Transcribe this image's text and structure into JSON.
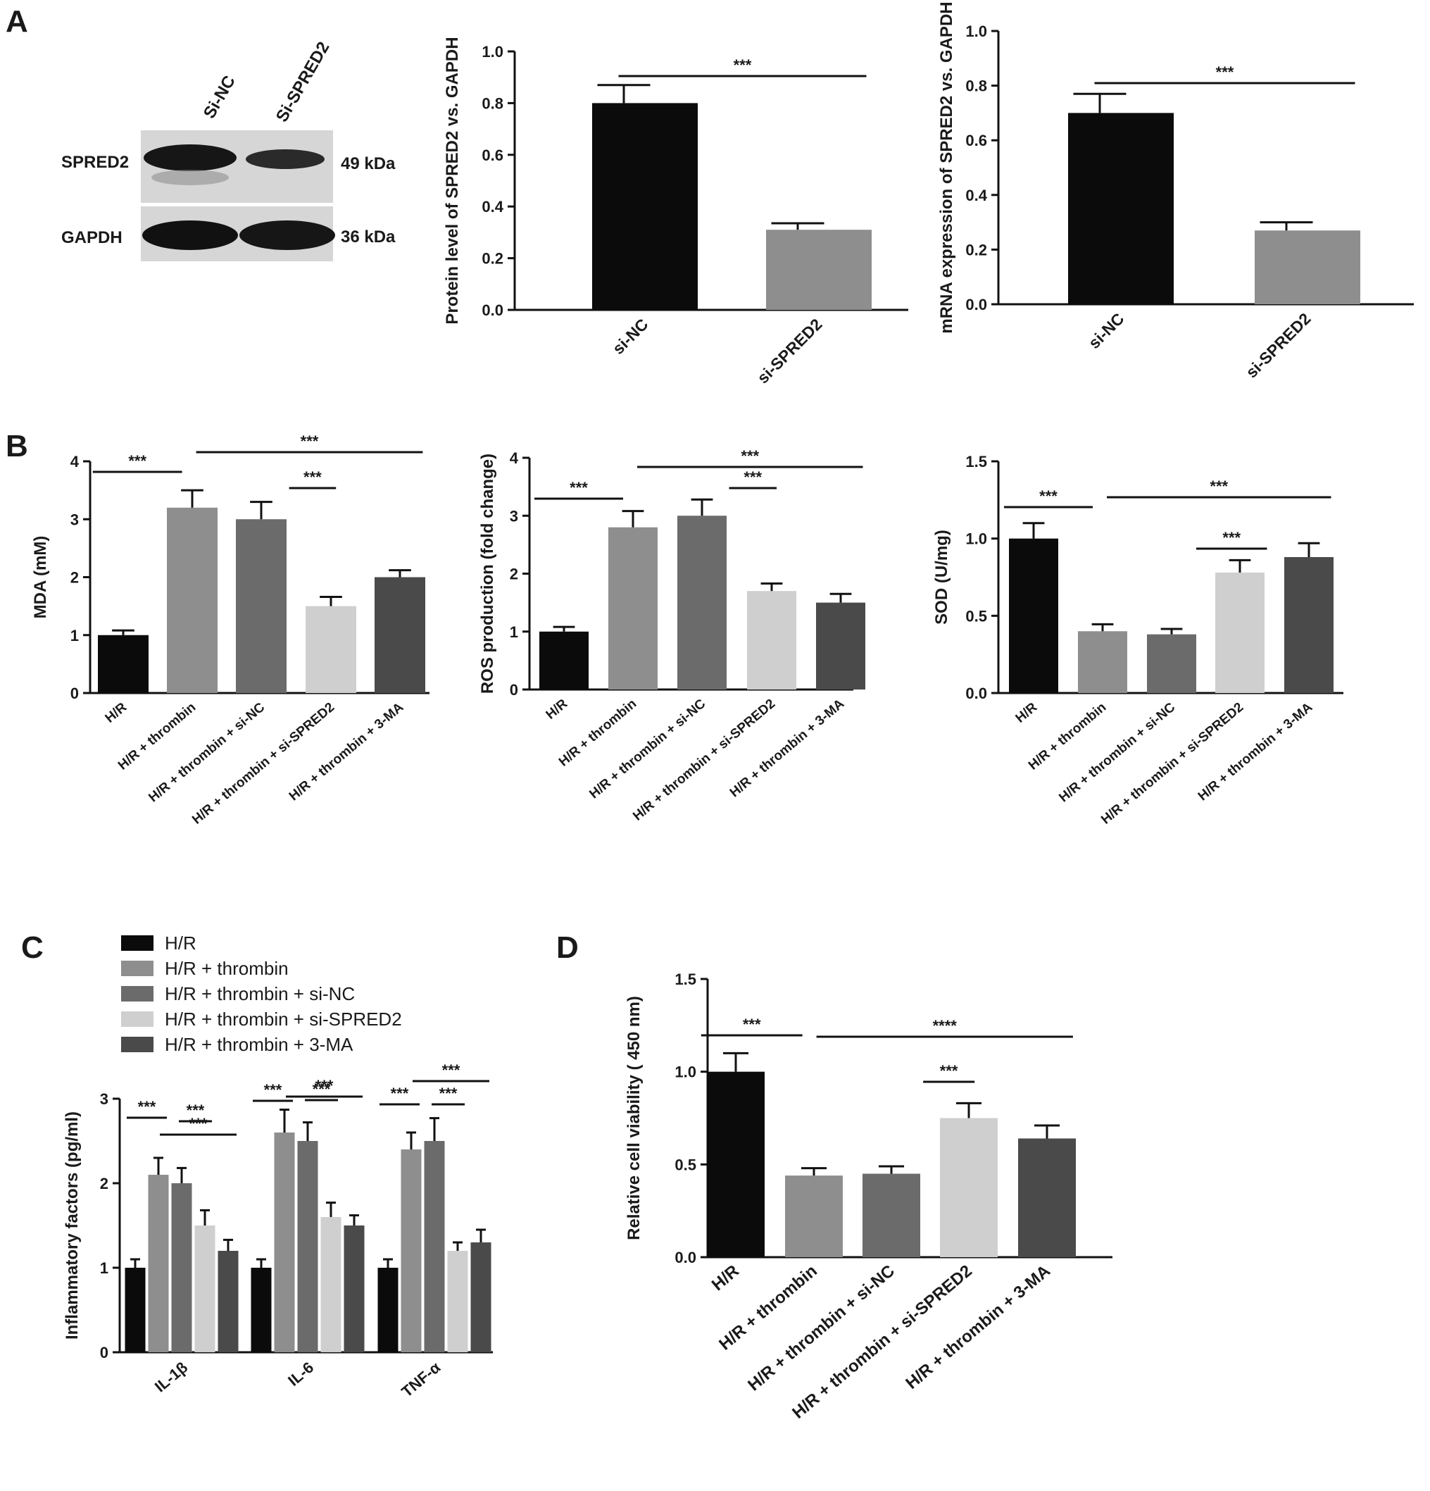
{
  "panels": {
    "A": {
      "letter": "A"
    },
    "B": {
      "letter": "B"
    },
    "C": {
      "letter": "C"
    },
    "D": {
      "letter": "D"
    }
  },
  "western_blot": {
    "lanes": [
      "Si-NC",
      "Si-SPRED2"
    ],
    "rows": [
      {
        "protein": "SPRED2",
        "size": "49 kDa"
      },
      {
        "protein": "GAPDH",
        "size": "36 kDa"
      }
    ]
  },
  "colors": {
    "black": "#0b0b0b",
    "gray_mid": "#8e8e8e",
    "gray_dark": "#6b6b6b",
    "gray_light": "#cfcfcf",
    "gray_darker": "#4a4a4a"
  },
  "chart_data": [
    {
      "id": "A2",
      "type": "bar",
      "categories": [
        "si-NC",
        "si-SPRED2"
      ],
      "values": [
        0.8,
        0.31
      ],
      "errors": [
        0.07,
        0.025
      ],
      "ylabel": "Protein level of SPRED2 vs. GAPDH",
      "ylim": [
        0,
        1.0
      ],
      "yticks": [
        "0.0",
        "0.2",
        "0.4",
        "0.6",
        "0.8",
        "1.0"
      ],
      "significance": [
        {
          "from": 0,
          "to": 1,
          "label": "***"
        }
      ]
    },
    {
      "id": "A3",
      "type": "bar",
      "categories": [
        "si-NC",
        "si-SPRED2"
      ],
      "values": [
        0.7,
        0.27
      ],
      "errors": [
        0.07,
        0.03
      ],
      "ylabel": "mRNA expression of SPRED2 vs. GAPDH",
      "ylim": [
        0,
        1.0
      ],
      "yticks": [
        "0.0",
        "0.2",
        "0.4",
        "0.6",
        "0.8",
        "1.0"
      ],
      "significance": [
        {
          "from": 0,
          "to": 1,
          "label": "***"
        }
      ]
    },
    {
      "id": "B1",
      "type": "bar",
      "categories": [
        "H/R",
        "H/R + thrombin",
        "H/R + thrombin + si-NC",
        "H/R + thrombin + si-SPRED2",
        "H/R + thrombin + 3-MA"
      ],
      "values": [
        1.0,
        3.2,
        3.0,
        1.5,
        2.0
      ],
      "errors": [
        0.08,
        0.3,
        0.3,
        0.16,
        0.12
      ],
      "ylabel": "MDA (mM)",
      "ylim": [
        0,
        4
      ],
      "yticks": [
        "0",
        "1",
        "2",
        "3",
        "4"
      ],
      "significance": [
        {
          "from": 0,
          "to": 1,
          "label": "***"
        },
        {
          "from": 1,
          "to": 4,
          "label": "***"
        },
        {
          "from": 2,
          "to": 3,
          "label": "***"
        }
      ]
    },
    {
      "id": "B2",
      "type": "bar",
      "categories": [
        "H/R",
        "H/R + thrombin",
        "H/R + thrombin + si-NC",
        "H/R + thrombin + si-SPRED2",
        "H/R + thrombin + 3-MA"
      ],
      "values": [
        1.0,
        2.8,
        3.0,
        1.7,
        1.5
      ],
      "errors": [
        0.08,
        0.28,
        0.28,
        0.13,
        0.15
      ],
      "ylabel": "ROS production (fold change)",
      "ylim": [
        0,
        4
      ],
      "yticks": [
        "0",
        "1",
        "2",
        "3",
        "4"
      ],
      "significance": [
        {
          "from": 0,
          "to": 1,
          "label": "***"
        },
        {
          "from": 1,
          "to": 4,
          "label": "***"
        },
        {
          "from": 2,
          "to": 3,
          "label": "***"
        }
      ]
    },
    {
      "id": "B3",
      "type": "bar",
      "categories": [
        "H/R",
        "H/R + thrombin",
        "H/R + thrombin + si-NC",
        "H/R + thrombin + si-SPRED2",
        "H/R + thrombin + 3-MA"
      ],
      "values": [
        1.0,
        0.4,
        0.38,
        0.78,
        0.88
      ],
      "errors": [
        0.1,
        0.045,
        0.035,
        0.08,
        0.09
      ],
      "ylabel": "SOD (U/mg)",
      "ylim": [
        0,
        1.5
      ],
      "yticks": [
        "0.0",
        "0.5",
        "1.0",
        "1.5"
      ],
      "significance": [
        {
          "from": 0,
          "to": 1,
          "label": "***"
        },
        {
          "from": 1,
          "to": 4,
          "label": "***"
        },
        {
          "from": 3,
          "to": 3.7,
          "label": "***",
          "toRaw": true
        }
      ]
    },
    {
      "id": "C",
      "type": "bar",
      "categories": [
        "IL-1β",
        "IL-6",
        "TNF-α"
      ],
      "series": [
        {
          "name": "H/R",
          "values": [
            1.0,
            1.0,
            1.0
          ],
          "errors": [
            0.1,
            0.1,
            0.1
          ]
        },
        {
          "name": "H/R + thrombin",
          "values": [
            2.1,
            2.6,
            2.4
          ],
          "errors": [
            0.2,
            0.27,
            0.2
          ]
        },
        {
          "name": "H/R + thrombin + si-NC",
          "values": [
            2.0,
            2.5,
            2.5
          ],
          "errors": [
            0.18,
            0.22,
            0.27
          ]
        },
        {
          "name": "H/R + thrombin + si-SPRED2",
          "values": [
            1.5,
            1.6,
            1.2
          ],
          "errors": [
            0.18,
            0.17,
            0.1
          ]
        },
        {
          "name": "H/R + thrombin + 3-MA",
          "values": [
            1.2,
            1.5,
            1.3
          ],
          "errors": [
            0.13,
            0.12,
            0.15
          ]
        }
      ],
      "ylabel": "Inflammatory factors (pg/ml)",
      "ylim": [
        0,
        3
      ],
      "yticks": [
        "0",
        "1",
        "2",
        "3"
      ],
      "sig_label": "***"
    },
    {
      "id": "D",
      "type": "bar",
      "categories": [
        "H/R",
        "H/R + thrombin",
        "H/R + thrombin + si-NC",
        "H/R + thrombin + si-SPRED2",
        "H/R + thrombin + 3-MA"
      ],
      "values": [
        1.0,
        0.44,
        0.45,
        0.75,
        0.64
      ],
      "errors": [
        0.1,
        0.04,
        0.04,
        0.08,
        0.07
      ],
      "ylabel": "Relative cell viability ( 450 nm)",
      "ylim": [
        0,
        1.5
      ],
      "yticks": [
        "0.0",
        "0.5",
        "1.0",
        "1.5"
      ],
      "significance": [
        {
          "from": 0,
          "to": 1,
          "label": "***"
        },
        {
          "from": 1,
          "to": 4,
          "label": "****"
        },
        {
          "from": 2,
          "to": 3,
          "label": "***"
        }
      ]
    }
  ]
}
